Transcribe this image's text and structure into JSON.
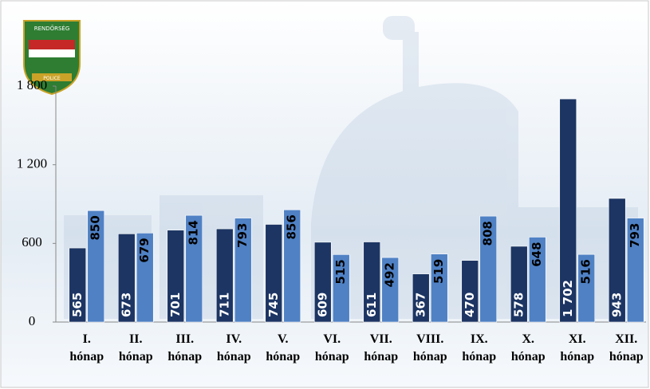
{
  "logo": {
    "top": "RENDŐRSÉG",
    "bottom": "POLICE"
  },
  "chart_data": {
    "type": "bar",
    "categories": [
      "I. hónap",
      "II. hónap",
      "III. hónap",
      "IV. hónap",
      "V. hónap",
      "VI. hónap",
      "VII. hónap",
      "VIII. hónap",
      "IX. hónap",
      "X. hónap",
      "XI. hónap",
      "XII. hónap"
    ],
    "series": [
      {
        "color": "#1c3563",
        "values": [
          565,
          673,
          701,
          711,
          745,
          609,
          611,
          367,
          470,
          578,
          1702,
          943
        ],
        "value_labels": [
          "565",
          "673",
          "701",
          "711",
          "745",
          "609",
          "611",
          "367",
          "470",
          "578",
          "1 702",
          "943"
        ]
      },
      {
        "color": "#4f81c4",
        "values": [
          850,
          679,
          814,
          793,
          856,
          515,
          492,
          519,
          808,
          648,
          516,
          793
        ]
      }
    ],
    "ylim": [
      0,
      1800
    ],
    "yticks": [
      0,
      600,
      {
        "value": 1200,
        "label": "1 200"
      },
      {
        "value": 1800,
        "label": "1 800"
      }
    ]
  }
}
